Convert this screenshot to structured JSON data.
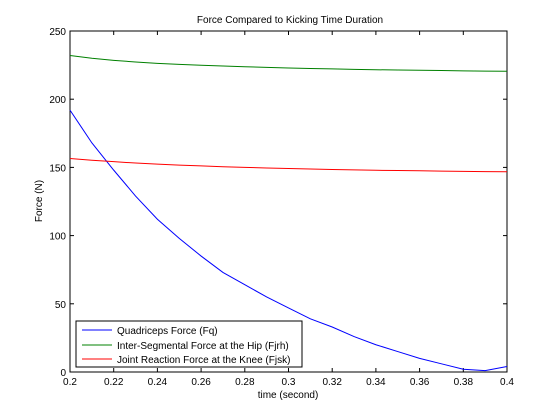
{
  "chart_data": {
    "type": "line",
    "title": "Force Compared to Kicking Time Duration",
    "xlabel": "time (second)",
    "ylabel": "Force (N)",
    "xlim": [
      0.2,
      0.4
    ],
    "ylim": [
      0,
      250
    ],
    "xticks": [
      "0.2",
      "0.22",
      "0.24",
      "0.26",
      "0.28",
      "0.3",
      "0.32",
      "0.34",
      "0.36",
      "0.38",
      "0.4"
    ],
    "yticks": [
      "0",
      "50",
      "100",
      "150",
      "200",
      "250"
    ],
    "grid": false,
    "legend_position": "bottom-left",
    "x": [
      0.2,
      0.21,
      0.22,
      0.23,
      0.24,
      0.25,
      0.26,
      0.27,
      0.28,
      0.29,
      0.3,
      0.31,
      0.32,
      0.33,
      0.34,
      0.35,
      0.36,
      0.37,
      0.38,
      0.39,
      0.4
    ],
    "series": [
      {
        "name": "Quadriceps Force (Fq)",
        "color": "#0000ff",
        "values": [
          192,
          168,
          148,
          129,
          112,
          98,
          85,
          73,
          64,
          55,
          47,
          39,
          33,
          26,
          20,
          15,
          10,
          6,
          2,
          1,
          4
        ]
      },
      {
        "name": "Inter-Segmental Force at the Hip (Fjrh)",
        "color": "#008000",
        "values": [
          232,
          230,
          228.5,
          227.3,
          226.3,
          225.5,
          224.9,
          224.3,
          223.8,
          223.3,
          222.9,
          222.5,
          222.2,
          221.9,
          221.6,
          221.4,
          221.2,
          221,
          220.8,
          220.6,
          220.5
        ]
      },
      {
        "name": "Joint Reaction Force at the Knee (Fjsk)",
        "color": "#ff0000",
        "values": [
          156.5,
          155.2,
          154.2,
          153.2,
          152.4,
          151.7,
          151.1,
          150.5,
          150,
          149.6,
          149.2,
          148.8,
          148.5,
          148.2,
          147.9,
          147.7,
          147.5,
          147.3,
          147.1,
          146.9,
          146.8
        ]
      }
    ]
  }
}
